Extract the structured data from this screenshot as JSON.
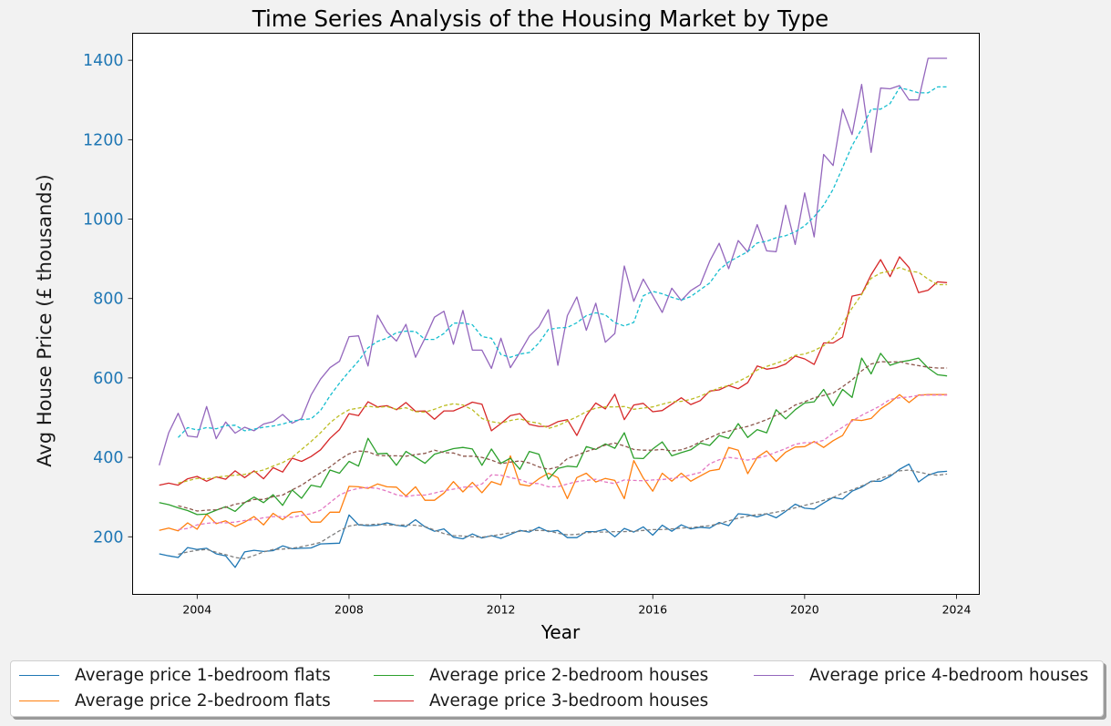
{
  "chart_data": {
    "type": "line",
    "title": "Time Series Analysis of the Housing Market by Type",
    "xlabel": "Year",
    "ylabel": "Avg House Price (£ thousands)",
    "xlim": [
      2002.3,
      2024.6
    ],
    "ylim": [
      55,
      1468
    ],
    "xticks": [
      2004,
      2008,
      2012,
      2016,
      2020,
      2024
    ],
    "yticks": [
      200,
      400,
      600,
      800,
      1000,
      1200,
      1400
    ],
    "ytick_color": "#1f77b4",
    "grid": false,
    "legend_position": "bottom",
    "x": [
      2003,
      2003.25,
      2003.5,
      2003.75,
      2004,
      2004.25,
      2004.5,
      2004.75,
      2005,
      2005.25,
      2005.5,
      2005.75,
      2006,
      2006.25,
      2006.5,
      2006.75,
      2007,
      2007.25,
      2007.5,
      2007.75,
      2008,
      2008.25,
      2008.5,
      2008.75,
      2009,
      2009.25,
      2009.5,
      2009.75,
      2010,
      2010.25,
      2010.5,
      2010.75,
      2011,
      2011.25,
      2011.5,
      2011.75,
      2012,
      2012.25,
      2012.5,
      2012.75,
      2013,
      2013.25,
      2013.5,
      2013.75,
      2014,
      2014.25,
      2014.5,
      2014.75,
      2015,
      2015.25,
      2015.5,
      2015.75,
      2016,
      2016.25,
      2016.5,
      2016.75,
      2017,
      2017.25,
      2017.5,
      2017.75,
      2018,
      2018.25,
      2018.5,
      2018.75,
      2019,
      2019.25,
      2019.5,
      2019.75,
      2020,
      2020.25,
      2020.5,
      2020.75,
      2021,
      2021.25,
      2021.5,
      2021.75,
      2022,
      2022.25,
      2022.5,
      2022.75,
      2023,
      2023.25,
      2023.5,
      2023.75
    ],
    "series": [
      {
        "name": "Average price 1-bedroom flats",
        "color": "#1f77b4",
        "values": [
          157,
          152,
          148,
          173,
          168,
          171,
          157,
          152,
          123,
          162,
          166,
          163,
          165,
          177,
          170,
          171,
          172,
          182,
          183,
          184,
          255,
          230,
          228,
          229,
          235,
          229,
          226,
          243,
          225,
          214,
          220,
          199,
          195,
          207,
          197,
          203,
          196,
          206,
          216,
          212,
          224,
          213,
          216,
          198,
          198,
          213,
          213,
          219,
          200,
          221,
          212,
          225,
          204,
          229,
          214,
          230,
          220,
          224,
          222,
          236,
          228,
          258,
          256,
          250,
          258,
          248,
          264,
          282,
          272,
          270,
          285,
          299,
          295,
          315,
          325,
          340,
          340,
          352,
          370,
          383,
          338,
          355,
          363,
          365
        ]
      },
      {
        "name": "Average price 2-bedroom flats",
        "color": "#ff7f0e",
        "values": [
          216,
          222,
          215,
          235,
          219,
          257,
          233,
          240,
          226,
          237,
          251,
          230,
          259,
          243,
          261,
          264,
          237,
          237,
          262,
          262,
          327,
          326,
          322,
          333,
          326,
          325,
          303,
          326,
          292,
          292,
          310,
          339,
          313,
          337,
          311,
          339,
          331,
          404,
          332,
          328,
          346,
          360,
          349,
          296,
          349,
          360,
          338,
          347,
          342,
          296,
          392,
          348,
          315,
          360,
          340,
          360,
          340,
          353,
          366,
          370,
          425,
          418,
          359,
          400,
          416,
          390,
          413,
          426,
          427,
          440,
          425,
          442,
          455,
          495,
          493,
          498,
          522,
          538,
          558,
          538,
          557,
          558,
          558,
          558
        ]
      },
      {
        "name": "Average price 2-bedroom houses",
        "color": "#2ca02c",
        "values": [
          286,
          281,
          273,
          266,
          256,
          257,
          267,
          276,
          264,
          286,
          300,
          286,
          306,
          279,
          318,
          297,
          330,
          325,
          368,
          360,
          390,
          378,
          448,
          409,
          410,
          380,
          415,
          400,
          385,
          408,
          415,
          422,
          425,
          421,
          380,
          421,
          385,
          398,
          370,
          415,
          408,
          345,
          372,
          378,
          376,
          427,
          420,
          434,
          423,
          462,
          398,
          397,
          421,
          439,
          404,
          412,
          419,
          436,
          430,
          455,
          448,
          485,
          450,
          470,
          462,
          520,
          497,
          520,
          537,
          540,
          571,
          530,
          571,
          551,
          650,
          610,
          662,
          632,
          640,
          644,
          650,
          625,
          608,
          605
        ]
      },
      {
        "name": "Average price 3-bedroom houses",
        "color": "#d62728",
        "values": [
          330,
          335,
          330,
          346,
          352,
          340,
          351,
          345,
          366,
          349,
          366,
          346,
          374,
          363,
          398,
          390,
          402,
          419,
          448,
          470,
          510,
          505,
          540,
          527,
          530,
          520,
          538,
          516,
          517,
          496,
          517,
          517,
          527,
          539,
          534,
          467,
          485,
          505,
          510,
          483,
          478,
          478,
          490,
          495,
          455,
          505,
          537,
          522,
          559,
          495,
          532,
          536,
          515,
          518,
          534,
          550,
          533,
          543,
          567,
          570,
          581,
          573,
          588,
          630,
          622,
          626,
          635,
          655,
          648,
          634,
          688,
          688,
          703,
          806,
          811,
          860,
          898,
          855,
          905,
          878,
          815,
          821,
          842,
          840
        ]
      },
      {
        "name": "Average price 4-bedroom houses",
        "color": "#9467bd",
        "values": [
          380,
          462,
          511,
          454,
          451,
          528,
          447,
          489,
          461,
          476,
          467,
          484,
          490,
          508,
          486,
          498,
          557,
          597,
          626,
          642,
          704,
          706,
          630,
          758,
          716,
          693,
          735,
          652,
          700,
          753,
          768,
          685,
          770,
          670,
          670,
          624,
          700,
          626,
          664,
          705,
          729,
          772,
          632,
          757,
          804,
          720,
          788,
          690,
          712,
          882,
          793,
          849,
          807,
          765,
          826,
          795,
          820,
          835,
          894,
          939,
          875,
          946,
          917,
          986,
          920,
          918,
          1035,
          936,
          1066,
          955,
          1163,
          1135,
          1277,
          1213,
          1339,
          1168,
          1330,
          1328,
          1336,
          1300,
          1300,
          1405,
          1405,
          1405
        ]
      },
      {
        "color": "#7f7f7f",
        "values": [
          null,
          null,
          156,
          162,
          166,
          168,
          161,
          155,
          148,
          145,
          153,
          162,
          168,
          169,
          171,
          175,
          180,
          186,
          201,
          215,
          227,
          231,
          230,
          232,
          230,
          229,
          230,
          229,
          226,
          217,
          208,
          203,
          202,
          200,
          199,
          202,
          206,
          210,
          214,
          216,
          216,
          215,
          209,
          205,
          206,
          210,
          212,
          212,
          213,
          213,
          214,
          216,
          218,
          218,
          220,
          222,
          223,
          226,
          228,
          233,
          240,
          247,
          252,
          256,
          258,
          262,
          267,
          273,
          279,
          285,
          292,
          299,
          310,
          318,
          328,
          338,
          347,
          356,
          366,
          368,
          363,
          358,
          355,
          358
        ]
      },
      {
        "color": "#e377c2",
        "values": [
          null,
          null,
          218,
          221,
          230,
          234,
          236,
          235,
          237,
          241,
          243,
          248,
          251,
          251,
          249,
          254,
          258,
          267,
          286,
          305,
          316,
          322,
          324,
          322,
          315,
          306,
          301,
          305,
          305,
          310,
          316,
          320,
          325,
          326,
          333,
          356,
          355,
          349,
          344,
          335,
          334,
          326,
          326,
          333,
          339,
          342,
          345,
          338,
          334,
          343,
          342,
          341,
          343,
          344,
          347,
          350,
          356,
          362,
          384,
          394,
          400,
          397,
          393,
          398,
          404,
          413,
          422,
          433,
          437,
          437,
          443,
          461,
          476,
          491,
          506,
          518,
          530,
          546,
          550,
          552,
          556,
          557,
          557,
          557
        ]
      },
      {
        "color": "#8c564b",
        "values": [
          null,
          null,
          278,
          272,
          265,
          267,
          268,
          274,
          282,
          286,
          294,
          294,
          301,
          305,
          318,
          330,
          346,
          361,
          376,
          394,
          409,
          416,
          414,
          405,
          404,
          404,
          403,
          407,
          410,
          418,
          412,
          411,
          403,
          403,
          400,
          393,
          384,
          388,
          391,
          386,
          376,
          370,
          376,
          397,
          405,
          415,
          422,
          431,
          436,
          429,
          420,
          418,
          418,
          420,
          416,
          419,
          427,
          439,
          449,
          460,
          466,
          473,
          478,
          486,
          495,
          506,
          516,
          532,
          540,
          550,
          556,
          562,
          578,
          595,
          618,
          635,
          641,
          640,
          641,
          635,
          631,
          627,
          625,
          625
        ]
      },
      {
        "color": "#bcbd22",
        "values": [
          null,
          null,
          335,
          341,
          347,
          346,
          350,
          353,
          355,
          357,
          363,
          368,
          378,
          387,
          400,
          420,
          440,
          462,
          487,
          506,
          520,
          524,
          529,
          526,
          528,
          521,
          525,
          515,
          514,
          521,
          530,
          535,
          532,
          520,
          498,
          490,
          486,
          493,
          497,
          490,
          486,
          473,
          480,
          491,
          502,
          515,
          524,
          527,
          527,
          528,
          521,
          524,
          527,
          534,
          540,
          541,
          546,
          554,
          565,
          575,
          581,
          591,
          603,
          620,
          629,
          637,
          645,
          657,
          660,
          669,
          681,
          700,
          736,
          776,
          810,
          851,
          864,
          869,
          878,
          869,
          866,
          849,
          835,
          835
        ]
      },
      {
        "color": "#17becf",
        "values": [
          null,
          null,
          450,
          475,
          469,
          475,
          472,
          480,
          481,
          467,
          471,
          476,
          479,
          484,
          491,
          495,
          497,
          518,
          555,
          587,
          616,
          643,
          676,
          692,
          700,
          714,
          718,
          717,
          697,
          697,
          712,
          738,
          738,
          734,
          704,
          700,
          659,
          652,
          660,
          664,
          688,
          722,
          726,
          727,
          739,
          757,
          764,
          759,
          739,
          731,
          740,
          807,
          818,
          812,
          803,
          796,
          805,
          822,
          839,
          872,
          892,
          905,
          918,
          940,
          944,
          953,
          958,
          968,
          983,
          1006,
          1035,
          1075,
          1130,
          1185,
          1227,
          1277,
          1277,
          1291,
          1331,
          1325,
          1318,
          1318,
          1333,
          1333
        ]
      }
    ]
  }
}
